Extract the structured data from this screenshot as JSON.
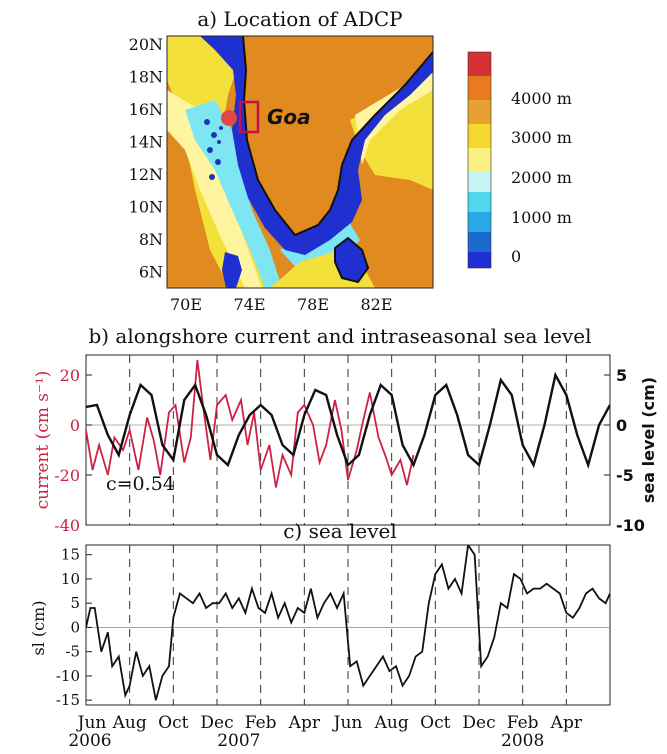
{
  "panel_a": {
    "title": "a) Location of ADCP",
    "place_label": "Goa",
    "lat_ticks": [
      "20N",
      "18N",
      "16N",
      "14N",
      "12N",
      "10N",
      "8N",
      "6N"
    ],
    "lon_ticks": [
      "70E",
      "74E",
      "78E",
      "82E"
    ],
    "colorbar_labels": [
      "4000 m",
      "3000 m",
      "2000 m",
      "1000 m",
      "0"
    ],
    "colors": {
      "land": "#d9a52a",
      "shelf": "#1f2fd0",
      "deep_orange": "#e08a20",
      "yellow": "#f4e03a",
      "light_yellow": "#fff5a0",
      "cyan": "#7ee6f2",
      "marker": "#e04848",
      "box": "#c8104a"
    }
  },
  "panel_b": {
    "title": "b) alongshore current and intraseasonal sea level",
    "left_axis_label": "current (cm s⁻¹)",
    "right_axis_label": "sea level (cm)",
    "left_ticks": [
      "20",
      "0",
      "-20",
      "-40"
    ],
    "right_ticks": [
      "5",
      "0",
      "-5",
      "-10"
    ],
    "annotation": "c=0.54",
    "current_color": "#cc2244",
    "sealevel_color": "#111111"
  },
  "panel_c": {
    "title": "c) sea level",
    "y_axis_label": "sl (cm)",
    "y_ticks": [
      "15",
      "10",
      "5",
      "0",
      "-5",
      "-10",
      "-15"
    ]
  },
  "x_axis": {
    "month_labels": [
      "Jun",
      "Aug",
      "Oct",
      "Dec",
      "Feb",
      "Apr",
      "Jun",
      "Aug",
      "Oct",
      "Dec",
      "Feb",
      "Apr"
    ],
    "year_labels": [
      "2006",
      "2007",
      "2008"
    ]
  },
  "chart_data": [
    {
      "type": "line",
      "title": "b) alongshore current and intraseasonal sea level",
      "x_unit": "months since 1 Jun 2006",
      "xlim": [
        0,
        24
      ],
      "series": [
        {
          "name": "current (cm s⁻¹)",
          "axis": "left",
          "ylim": [
            -40,
            28
          ],
          "x": [
            0,
            0.3,
            0.6,
            1.0,
            1.3,
            1.7,
            2.0,
            2.4,
            2.8,
            3.1,
            3.4,
            3.8,
            4.1,
            4.5,
            4.8,
            5.1,
            5.4,
            5.7,
            6.0,
            6.4,
            6.7,
            7.1,
            7.4,
            7.7,
            8.0,
            8.4,
            8.7,
            9.0,
            9.4,
            9.7,
            10.0,
            10.4,
            10.7,
            11.0,
            11.4,
            11.7,
            12.0,
            12.4,
            12.7,
            13.0,
            13.4,
            13.7,
            14.0,
            14.4,
            14.7,
            15.0
          ],
          "values": [
            -2,
            -18,
            -8,
            -20,
            -5,
            -10,
            -2,
            -18,
            3,
            -6,
            -20,
            5,
            8,
            -15,
            -5,
            26,
            5,
            -14,
            8,
            12,
            2,
            10,
            -8,
            5,
            -18,
            -8,
            -25,
            -12,
            -20,
            5,
            8,
            0,
            -15,
            -8,
            10,
            -2,
            -22,
            -10,
            2,
            13,
            -5,
            -12,
            -20,
            -14,
            -24,
            -12
          ]
        },
        {
          "name": "sea level (cm)",
          "axis": "right",
          "ylim": [
            -10,
            7
          ],
          "x": [
            0,
            0.5,
            1,
            1.5,
            2,
            2.5,
            3,
            3.5,
            4,
            4.5,
            5,
            5.5,
            6,
            6.5,
            7,
            7.5,
            8,
            8.5,
            9,
            9.5,
            10,
            10.5,
            11,
            11.5,
            12,
            12.5,
            13,
            13.5,
            14,
            14.5,
            15,
            15.5,
            16,
            16.5,
            17,
            17.5,
            18,
            18.5,
            19,
            19.5,
            20,
            20.5,
            21,
            21.5,
            22,
            22.5,
            23,
            23.5,
            24
          ],
          "values": [
            1.8,
            2,
            -1,
            -3,
            1,
            4,
            3,
            -2,
            -3.5,
            2.5,
            4,
            1,
            -3,
            -4,
            -1,
            1,
            2,
            1,
            -2,
            -3,
            1,
            3.5,
            3,
            -1,
            -4,
            -3,
            1,
            4,
            3,
            -2,
            -4,
            -1,
            3,
            4,
            1,
            -3,
            -4,
            0,
            4.5,
            3,
            -2,
            -4,
            0,
            5,
            3,
            -1,
            -4,
            0,
            2
          ]
        }
      ],
      "annotation": "c=0.54"
    },
    {
      "type": "line",
      "title": "c) sea level",
      "ylabel": "sl (cm)",
      "x_unit": "months since 1 Jun 2006",
      "xlim": [
        0,
        24
      ],
      "ylim": [
        -16,
        17
      ],
      "series": [
        {
          "name": "sea level",
          "x": [
            0,
            0.2,
            0.4,
            0.7,
            1.0,
            1.2,
            1.5,
            1.8,
            2.0,
            2.3,
            2.6,
            2.9,
            3.2,
            3.5,
            3.8,
            4.0,
            4.3,
            4.6,
            4.9,
            5.2,
            5.5,
            5.8,
            6.1,
            6.4,
            6.7,
            7.0,
            7.3,
            7.6,
            7.9,
            8.2,
            8.5,
            8.8,
            9.1,
            9.4,
            9.7,
            10.0,
            10.3,
            10.6,
            10.9,
            11.2,
            11.5,
            11.8,
            12.1,
            12.4,
            12.7,
            13.0,
            13.3,
            13.6,
            13.9,
            14.2,
            14.5,
            14.8,
            15.1,
            15.4,
            15.7,
            16.0,
            16.3,
            16.6,
            16.9,
            17.2,
            17.5,
            17.8,
            18.1,
            18.4,
            18.7,
            19.0,
            19.3,
            19.6,
            19.9,
            20.2,
            20.5,
            20.8,
            21.1,
            21.4,
            21.7,
            22.0,
            22.3,
            22.6,
            22.9,
            23.2,
            23.5,
            23.8,
            24.0
          ],
          "values": [
            0,
            4,
            4,
            -5,
            -1,
            -8,
            -6,
            -14,
            -12,
            -5,
            -10,
            -8,
            -15,
            -10,
            -8,
            2,
            7,
            6,
            5,
            7,
            4,
            5,
            5,
            7,
            4,
            6,
            3,
            8,
            4,
            3,
            7,
            2,
            5,
            1,
            4,
            3,
            8,
            2,
            5,
            7,
            4,
            7,
            -8,
            -7,
            -12,
            -10,
            -8,
            -6,
            -9,
            -8,
            -12,
            -10,
            -6,
            -5,
            5,
            11,
            13,
            8,
            10,
            7,
            17,
            15,
            -8,
            -6,
            -2,
            5,
            4,
            11,
            10,
            7,
            8,
            8,
            9,
            8,
            7,
            3,
            2,
            4,
            7,
            8,
            6,
            5,
            7
          ]
        }
      ]
    }
  ]
}
